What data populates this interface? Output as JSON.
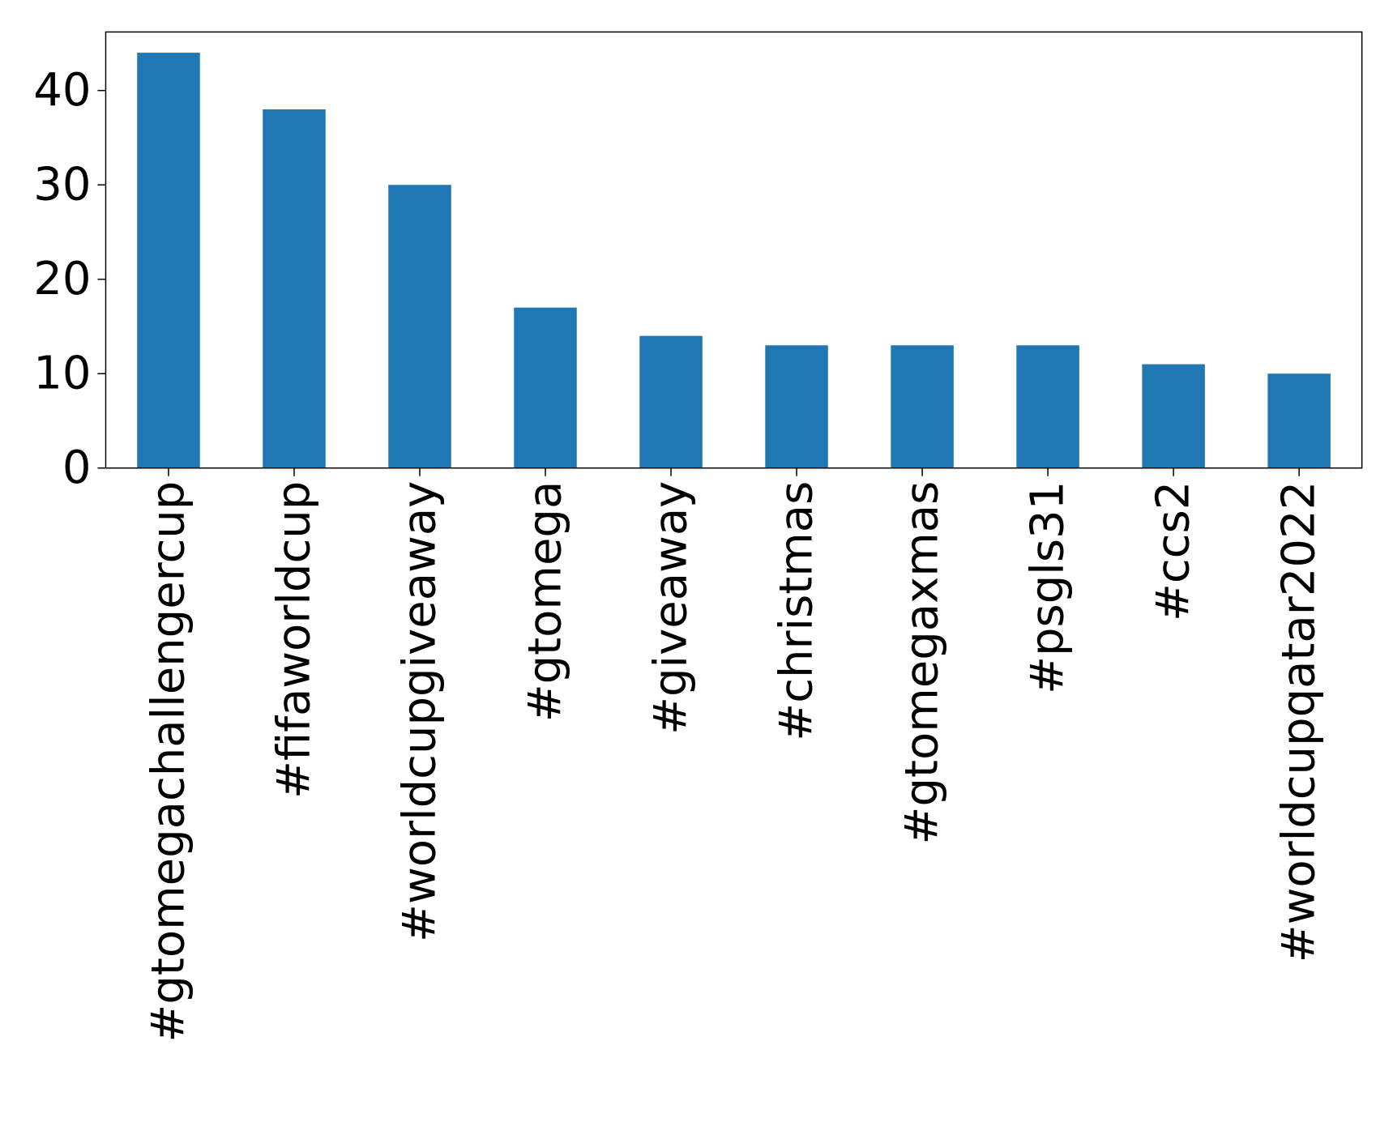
{
  "chart_data": {
    "type": "bar",
    "title": "",
    "xlabel": "",
    "ylabel": "",
    "categories": [
      "#gtomegachallengercup",
      "#fifaworldcup",
      "#worldcupgiveaway",
      "#gtomega",
      "#giveaway",
      "#christmas",
      "#gtomegaxmas",
      "#psgls31",
      "#ccs2",
      "#worldcupqatar2022"
    ],
    "values": [
      44,
      38,
      30,
      17,
      14,
      13,
      13,
      13,
      11,
      10
    ],
    "ylim": [
      0,
      46.2
    ],
    "yticks": [
      0,
      10,
      20,
      30,
      40
    ],
    "grid": false,
    "legend": "none",
    "colors": {
      "bar": "#1f77b4",
      "axis": "#000000",
      "background": "#ffffff"
    }
  }
}
